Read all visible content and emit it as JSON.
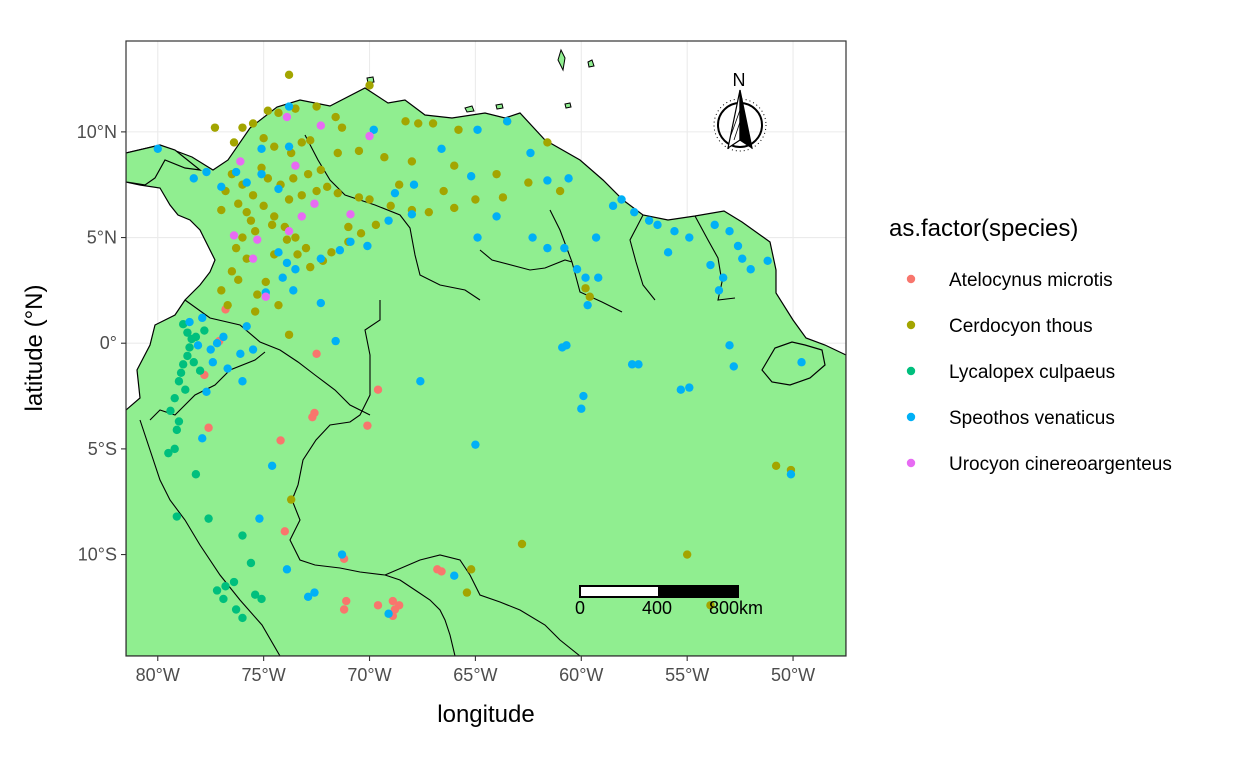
{
  "chart_data": {
    "type": "scatter",
    "map_region": "Northern South America",
    "xlabel": "longitude",
    "ylabel": "latitude (°N)",
    "xlim": [
      -81.5,
      -47.5
    ],
    "ylim": [
      -14.8,
      14.3
    ],
    "x_ticks": [
      {
        "value": -80,
        "label": "80°W"
      },
      {
        "value": -75,
        "label": "75°W"
      },
      {
        "value": -70,
        "label": "70°W"
      },
      {
        "value": -65,
        "label": "65°W"
      },
      {
        "value": -60,
        "label": "60°W"
      },
      {
        "value": -55,
        "label": "55°W"
      },
      {
        "value": -50,
        "label": "50°W"
      }
    ],
    "y_ticks": [
      {
        "value": 10,
        "label": "10°N"
      },
      {
        "value": 5,
        "label": "5°N"
      },
      {
        "value": 0,
        "label": "0°"
      },
      {
        "value": -5,
        "label": "5°S"
      },
      {
        "value": -10,
        "label": "10°S"
      }
    ],
    "grid": true,
    "land_color": "#90EE90",
    "legend": {
      "title": "as.factor(species)",
      "placement": "right"
    },
    "series": [
      {
        "name": "Atelocynus microtis",
        "color": "#F8766D",
        "points": [
          [
            -77.8,
            -1.5
          ],
          [
            -77.6,
            -4.0
          ],
          [
            -74.2,
            -4.6
          ],
          [
            -74.0,
            -8.9
          ],
          [
            -72.6,
            -3.3
          ],
          [
            -72.7,
            -3.5
          ],
          [
            -72.5,
            -0.5
          ],
          [
            -71.2,
            -10.2
          ],
          [
            -71.1,
            -12.2
          ],
          [
            -70.1,
            -3.9
          ],
          [
            -69.6,
            -2.2
          ],
          [
            -68.9,
            -12.2
          ],
          [
            -68.8,
            -12.6
          ],
          [
            -68.6,
            -12.4
          ],
          [
            -69.6,
            -12.4
          ],
          [
            -66.8,
            -10.7
          ],
          [
            -66.6,
            -10.8
          ],
          [
            -71.2,
            -12.6
          ],
          [
            -68.9,
            -12.9
          ],
          [
            -77.1,
            0.1
          ],
          [
            -76.8,
            1.6
          ]
        ]
      },
      {
        "name": "Cerdocyon thous",
        "color": "#A3A500",
        "points": [
          [
            -73.8,
            12.7
          ],
          [
            -70.0,
            12.2
          ],
          [
            -74.8,
            11.0
          ],
          [
            -74.3,
            10.9
          ],
          [
            -73.5,
            11.1
          ],
          [
            -72.5,
            11.2
          ],
          [
            -71.6,
            10.7
          ],
          [
            -71.3,
            10.2
          ],
          [
            -68.3,
            10.5
          ],
          [
            -67.0,
            10.4
          ],
          [
            -67.7,
            10.4
          ],
          [
            -65.8,
            10.1
          ],
          [
            -63.5,
            10.5
          ],
          [
            -61.6,
            9.5
          ],
          [
            -76.0,
            10.2
          ],
          [
            -75.5,
            10.4
          ],
          [
            -75.0,
            9.7
          ],
          [
            -74.5,
            9.3
          ],
          [
            -73.7,
            9.0
          ],
          [
            -73.2,
            9.5
          ],
          [
            -72.8,
            9.6
          ],
          [
            -71.5,
            9.0
          ],
          [
            -70.5,
            9.1
          ],
          [
            -69.3,
            8.8
          ],
          [
            -68.0,
            8.6
          ],
          [
            -66.0,
            8.4
          ],
          [
            -64.0,
            8.0
          ],
          [
            -62.5,
            7.6
          ],
          [
            -61.0,
            7.2
          ],
          [
            -76.5,
            8.0
          ],
          [
            -76.0,
            7.5
          ],
          [
            -75.5,
            7.0
          ],
          [
            -75.0,
            6.5
          ],
          [
            -74.5,
            6.0
          ],
          [
            -74.0,
            5.5
          ],
          [
            -73.5,
            5.0
          ],
          [
            -73.0,
            4.5
          ],
          [
            -75.8,
            6.2
          ],
          [
            -75.6,
            5.8
          ],
          [
            -75.4,
            5.3
          ],
          [
            -76.0,
            5.0
          ],
          [
            -76.3,
            4.5
          ],
          [
            -75.8,
            4.0
          ],
          [
            -76.5,
            3.4
          ],
          [
            -76.2,
            3.0
          ],
          [
            -77.0,
            2.5
          ],
          [
            -76.7,
            1.8
          ],
          [
            -75.4,
            1.5
          ],
          [
            -74.5,
            4.2
          ],
          [
            -73.8,
            6.8
          ],
          [
            -73.2,
            7.0
          ],
          [
            -72.5,
            7.2
          ],
          [
            -72.0,
            7.4
          ],
          [
            -71.5,
            7.1
          ],
          [
            -70.5,
            6.9
          ],
          [
            -70.0,
            6.8
          ],
          [
            -69.0,
            6.5
          ],
          [
            -68.0,
            6.3
          ],
          [
            -67.2,
            6.2
          ],
          [
            -66.0,
            6.4
          ],
          [
            -65.0,
            6.8
          ],
          [
            -75.1,
            8.3
          ],
          [
            -74.8,
            7.8
          ],
          [
            -74.2,
            7.5
          ],
          [
            -73.6,
            7.8
          ],
          [
            -72.9,
            8.0
          ],
          [
            -72.3,
            8.2
          ],
          [
            -76.8,
            7.2
          ],
          [
            -77.0,
            6.3
          ],
          [
            -76.2,
            6.6
          ],
          [
            -74.6,
            5.6
          ],
          [
            -73.9,
            4.9
          ],
          [
            -73.4,
            4.2
          ],
          [
            -72.8,
            3.6
          ],
          [
            -72.2,
            3.9
          ],
          [
            -71.8,
            4.3
          ],
          [
            -71.0,
            4.8
          ],
          [
            -70.4,
            5.2
          ],
          [
            -69.7,
            5.6
          ],
          [
            -74.9,
            2.9
          ],
          [
            -75.3,
            2.3
          ],
          [
            -74.3,
            1.8
          ],
          [
            -73.8,
            0.4
          ],
          [
            -59.6,
            2.2
          ],
          [
            -59.8,
            2.6
          ],
          [
            -55.0,
            -10.0
          ],
          [
            -62.8,
            -9.5
          ],
          [
            -65.4,
            -11.8
          ],
          [
            -65.2,
            -10.7
          ],
          [
            -50.8,
            -5.8
          ],
          [
            -50.1,
            -6.0
          ],
          [
            -53.9,
            -12.4
          ],
          [
            -73.7,
            -7.4
          ],
          [
            -77.3,
            10.2
          ],
          [
            -76.4,
            9.5
          ],
          [
            -71.0,
            5.5
          ],
          [
            -66.5,
            7.2
          ],
          [
            -63.7,
            6.9
          ],
          [
            -68.6,
            7.5
          ]
        ]
      },
      {
        "name": "Lycalopex culpaeus",
        "color": "#00BF7D",
        "points": [
          [
            -78.8,
            0.9
          ],
          [
            -78.6,
            0.5
          ],
          [
            -78.4,
            0.2
          ],
          [
            -78.5,
            -0.2
          ],
          [
            -78.6,
            -0.6
          ],
          [
            -78.8,
            -1.0
          ],
          [
            -78.9,
            -1.4
          ],
          [
            -79.0,
            -1.8
          ],
          [
            -78.7,
            -2.2
          ],
          [
            -79.2,
            -2.6
          ],
          [
            -79.4,
            -3.2
          ],
          [
            -79.0,
            -3.7
          ],
          [
            -79.1,
            -4.1
          ],
          [
            -79.5,
            -5.2
          ],
          [
            -79.2,
            -5.0
          ],
          [
            -78.2,
            -6.2
          ],
          [
            -79.1,
            -8.2
          ],
          [
            -77.6,
            -8.3
          ],
          [
            -76.0,
            -9.1
          ],
          [
            -75.6,
            -10.4
          ],
          [
            -76.4,
            -11.3
          ],
          [
            -76.8,
            -11.5
          ],
          [
            -76.9,
            -12.1
          ],
          [
            -76.3,
            -12.6
          ],
          [
            -75.4,
            -11.9
          ],
          [
            -75.1,
            -12.1
          ],
          [
            -77.2,
            -11.7
          ],
          [
            -76.0,
            -13.0
          ],
          [
            -78.3,
            -0.9
          ],
          [
            -78.0,
            -1.3
          ],
          [
            -78.2,
            0.3
          ],
          [
            -77.8,
            0.6
          ]
        ]
      },
      {
        "name": "Speothos venaticus",
        "color": "#00B0F6",
        "points": [
          [
            -80.0,
            9.2
          ],
          [
            -78.3,
            7.8
          ],
          [
            -77.0,
            7.4
          ],
          [
            -75.8,
            7.6
          ],
          [
            -75.1,
            8.0
          ],
          [
            -74.3,
            7.3
          ],
          [
            -73.9,
            3.8
          ],
          [
            -74.1,
            3.1
          ],
          [
            -73.5,
            3.5
          ],
          [
            -74.3,
            4.3
          ],
          [
            -72.3,
            4.0
          ],
          [
            -71.4,
            4.4
          ],
          [
            -70.9,
            4.8
          ],
          [
            -70.1,
            4.6
          ],
          [
            -69.1,
            5.8
          ],
          [
            -68.0,
            6.1
          ],
          [
            -67.9,
            7.5
          ],
          [
            -65.2,
            7.9
          ],
          [
            -64.9,
            5.0
          ],
          [
            -62.3,
            5.0
          ],
          [
            -61.6,
            4.5
          ],
          [
            -60.8,
            4.5
          ],
          [
            -59.3,
            5.0
          ],
          [
            -58.5,
            6.5
          ],
          [
            -58.1,
            6.8
          ],
          [
            -56.8,
            5.8
          ],
          [
            -56.4,
            5.6
          ],
          [
            -55.6,
            5.3
          ],
          [
            -54.9,
            5.0
          ],
          [
            -53.0,
            5.3
          ],
          [
            -52.6,
            4.6
          ],
          [
            -52.4,
            4.0
          ],
          [
            -53.3,
            3.1
          ],
          [
            -53.5,
            2.5
          ],
          [
            -53.9,
            3.7
          ],
          [
            -59.8,
            3.1
          ],
          [
            -60.2,
            3.5
          ],
          [
            -59.2,
            3.1
          ],
          [
            -60.7,
            -0.1
          ],
          [
            -60.9,
            -0.2
          ],
          [
            -59.9,
            -2.5
          ],
          [
            -60.0,
            -3.1
          ],
          [
            -57.3,
            -1.0
          ],
          [
            -55.3,
            -2.2
          ],
          [
            -54.9,
            -2.1
          ],
          [
            -53.0,
            -0.1
          ],
          [
            -52.8,
            -1.1
          ],
          [
            -49.6,
            -0.9
          ],
          [
            -50.1,
            -6.2
          ],
          [
            -65.0,
            -4.8
          ],
          [
            -71.6,
            0.1
          ],
          [
            -72.3,
            1.9
          ],
          [
            -73.6,
            2.5
          ],
          [
            -75.8,
            0.8
          ],
          [
            -76.9,
            0.3
          ],
          [
            -77.2,
            0.0
          ],
          [
            -77.5,
            -0.3
          ],
          [
            -76.1,
            -0.5
          ],
          [
            -75.5,
            -0.3
          ],
          [
            -77.9,
            -4.5
          ],
          [
            -77.7,
            -2.3
          ],
          [
            -74.6,
            -5.8
          ],
          [
            -75.2,
            -8.3
          ],
          [
            -73.9,
            -10.7
          ],
          [
            -72.6,
            -11.8
          ],
          [
            -72.9,
            -12.0
          ],
          [
            -71.3,
            -10.0
          ],
          [
            -69.1,
            -12.8
          ],
          [
            -66.0,
            -11.0
          ],
          [
            -67.6,
            -1.8
          ],
          [
            -60.6,
            7.8
          ],
          [
            -61.6,
            7.7
          ],
          [
            -63.5,
            10.5
          ],
          [
            -64.9,
            10.1
          ],
          [
            -57.6,
            -1.0
          ],
          [
            -59.7,
            1.8
          ],
          [
            -69.8,
            10.1
          ],
          [
            -73.8,
            11.2
          ],
          [
            -73.8,
            9.3
          ],
          [
            -76.3,
            8.1
          ],
          [
            -75.1,
            9.2
          ],
          [
            -77.7,
            8.1
          ],
          [
            -78.5,
            1.0
          ],
          [
            -78.1,
            -0.1
          ],
          [
            -77.9,
            1.2
          ],
          [
            -77.4,
            -0.9
          ],
          [
            -76.7,
            -1.2
          ],
          [
            -76.0,
            -1.8
          ],
          [
            -74.9,
            2.4
          ],
          [
            -68.8,
            7.1
          ],
          [
            -66.6,
            9.2
          ],
          [
            -64.0,
            6.0
          ],
          [
            -62.4,
            9.0
          ],
          [
            -57.5,
            6.2
          ],
          [
            -52.0,
            3.5
          ],
          [
            -51.2,
            3.9
          ],
          [
            -53.7,
            5.6
          ],
          [
            -55.9,
            4.3
          ]
        ]
      },
      {
        "name": "Urocyon cinereoargenteus",
        "color": "#E76BF3",
        "points": [
          [
            -76.1,
            8.6
          ],
          [
            -73.9,
            10.7
          ],
          [
            -72.3,
            10.3
          ],
          [
            -70.0,
            9.8
          ],
          [
            -73.5,
            8.4
          ],
          [
            -72.6,
            6.6
          ],
          [
            -75.3,
            4.9
          ],
          [
            -75.5,
            4.0
          ],
          [
            -74.9,
            2.2
          ],
          [
            -73.2,
            6.0
          ],
          [
            -70.9,
            6.1
          ],
          [
            -73.8,
            5.3
          ],
          [
            -76.4,
            5.1
          ]
        ]
      }
    ],
    "scale_bar": {
      "labels": [
        "0",
        "400",
        "800km"
      ]
    },
    "north_arrow": {
      "label": "N"
    }
  }
}
